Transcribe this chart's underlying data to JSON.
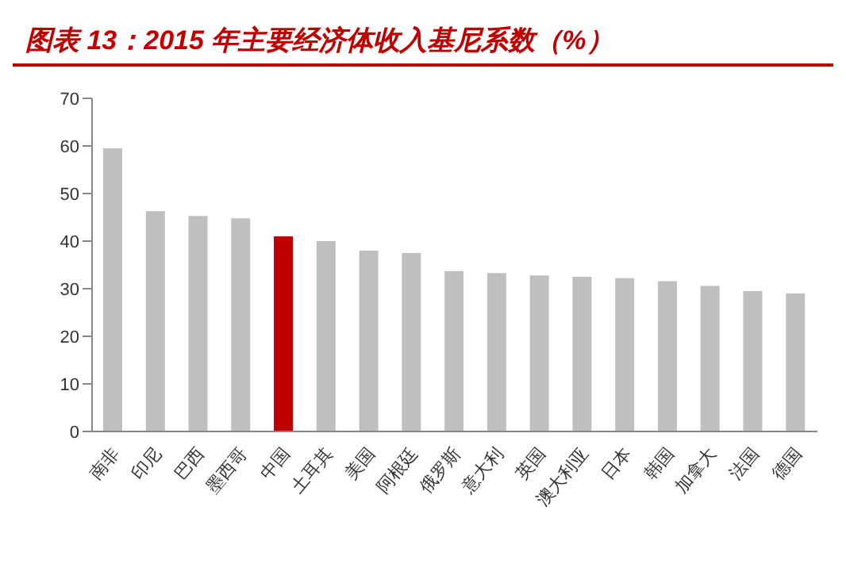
{
  "chart_data": {
    "type": "bar",
    "title": "图表 13：2015 年主要经济体收入基尼系数（%）",
    "categories": [
      "南非",
      "印尼",
      "巴西",
      "墨西哥",
      "中国",
      "土耳其",
      "美国",
      "阿根廷",
      "俄罗斯",
      "意大利",
      "英国",
      "澳大利亚",
      "日本",
      "韩国",
      "加拿大",
      "法国",
      "德国"
    ],
    "values": [
      59.5,
      46.3,
      45.3,
      44.8,
      41,
      40,
      38,
      37.5,
      33.7,
      33.3,
      32.8,
      32.5,
      32.2,
      31.6,
      30.6,
      29.5,
      29
    ],
    "colors": [
      "#bfbfbf",
      "#bfbfbf",
      "#bfbfbf",
      "#bfbfbf",
      "#c00000",
      "#bfbfbf",
      "#bfbfbf",
      "#bfbfbf",
      "#bfbfbf",
      "#bfbfbf",
      "#bfbfbf",
      "#bfbfbf",
      "#bfbfbf",
      "#bfbfbf",
      "#bfbfbf",
      "#bfbfbf",
      "#bfbfbf"
    ],
    "ylim": [
      0,
      70
    ],
    "yticks": [
      0,
      10,
      20,
      30,
      40,
      50,
      60,
      70
    ],
    "grid": false,
    "legend": false
  }
}
